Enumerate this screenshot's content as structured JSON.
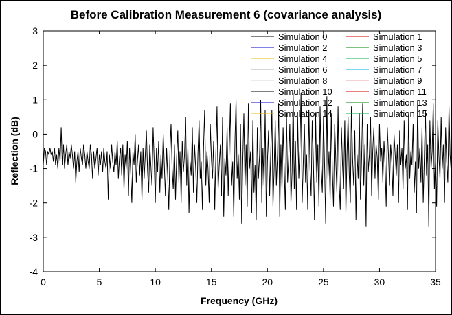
{
  "chart_data": {
    "type": "line",
    "title": "Before Calibration Measurement 6 (covariance analysis)",
    "xlabel": "Frequency (GHz)",
    "ylabel": "Reflection (dB)",
    "xlim": [
      0,
      35
    ],
    "ylim": [
      -4,
      3
    ],
    "xticks": [
      "0",
      "5",
      "10",
      "15",
      "20",
      "25",
      "30",
      "35"
    ],
    "yticks": [
      "3",
      "2",
      "1",
      "0",
      "-1",
      "-2",
      "-3",
      "-4"
    ],
    "grid": false,
    "legend_placement": "top-right",
    "x_start": 0,
    "x_step": 0.1,
    "series": [
      {
        "name": "Simulation 0",
        "color": "#000000",
        "values": [
          -0.9,
          -0.4,
          -0.5,
          -0.9,
          -0.5,
          -0.6,
          -0.4,
          -0.6,
          -0.5,
          -0.8,
          -0.4,
          -0.9,
          -0.6,
          -1.0,
          -0.4,
          -0.8,
          0.2,
          -0.9,
          -0.3,
          -1.0,
          -0.6,
          -0.3,
          -0.9,
          -0.5,
          -0.7,
          -0.3,
          -0.6,
          -1.0,
          -0.5,
          -1.4,
          -0.8,
          -0.5,
          -1.1,
          -0.4,
          -0.7,
          -0.9,
          -0.3,
          -0.6,
          -1.0,
          -0.5,
          -0.8,
          -1.0,
          -0.3,
          -0.6,
          -1.3,
          -0.5,
          -1.0,
          -0.7,
          -0.4,
          -1.2,
          -0.6,
          -0.9,
          -0.5,
          -1.1,
          -0.4,
          -0.8,
          -1.0,
          -0.5,
          -1.9,
          -0.6,
          -1.0,
          -0.3,
          -0.8,
          -1.1,
          -0.5,
          -0.9,
          -0.2,
          -1.3,
          -0.7,
          -0.4,
          -1.2,
          -0.3,
          -1.6,
          -0.6,
          -1.0,
          -0.2,
          -1.8,
          -0.4,
          -1.1,
          -2.0,
          -0.5,
          -0.9,
          0.0,
          -1.4,
          -0.8,
          -0.3,
          -1.2,
          -0.5,
          -1.9,
          -0.4,
          -1.3,
          -0.6,
          0.1,
          -1.0,
          -1.7,
          -0.3,
          -0.9,
          -1.5,
          0.2,
          -0.8,
          -2.0,
          -0.4,
          -1.1,
          -0.2,
          -1.7,
          -0.6,
          -1.3,
          0.0,
          -0.9,
          -1.8,
          -0.4,
          -1.2,
          -2.2,
          -0.5,
          0.3,
          -1.0,
          -1.6,
          -0.3,
          -1.9,
          -0.7,
          0.1,
          -1.4,
          -0.5,
          -2.0,
          -0.2,
          -1.1,
          -0.6,
          0.5,
          -1.5,
          -0.4,
          -2.3,
          -0.8,
          -1.2,
          0.2,
          -1.7,
          -0.3,
          -1.0,
          -2.0,
          -0.6,
          0.4,
          -1.3,
          -0.8,
          -2.2,
          -0.4,
          0.7,
          -1.5,
          -0.5,
          -1.0,
          -2.0,
          0.3,
          -0.7,
          -1.3,
          -0.2,
          -2.2,
          -0.6,
          0.8,
          -1.6,
          -0.9,
          -0.3,
          -1.8,
          0.5,
          -2.4,
          -0.7,
          -1.2,
          0.2,
          -1.8,
          -0.4,
          0.9,
          -1.5,
          -0.8,
          -2.4,
          -0.2,
          1.0,
          -1.3,
          -0.6,
          -1.9,
          0.3,
          -2.6,
          -0.8,
          0.6,
          -1.5,
          -0.3,
          -2.1,
          0.9,
          -1.0,
          -0.5,
          -2.3,
          0.4,
          -1.7,
          -0.9,
          -2.5,
          0.2,
          -1.3,
          -0.6,
          1.0,
          -2.0,
          -0.4,
          -1.5,
          0.7,
          -2.4,
          -0.8,
          0.1,
          -1.8,
          -0.5,
          0.7,
          -2.1,
          -1.0,
          0.4,
          -1.5,
          -0.6,
          0.9,
          -2.4,
          -0.3,
          -1.6,
          0.2,
          -1.0,
          -2.2,
          0.6,
          -1.4,
          -0.7,
          0.3,
          -2.0,
          -1.1,
          1.2,
          -1.6,
          -0.2,
          -2.2,
          0.5,
          -1.3,
          -0.4,
          1.2,
          -2.0,
          -0.8,
          0.3,
          -1.4,
          -0.6,
          -2.2,
          0.7,
          -1.0,
          -1.8,
          0.4,
          -0.8,
          -2.5,
          0.6,
          -1.4,
          -0.3,
          -2.1,
          0.8,
          -1.0,
          -1.7,
          0.5,
          -0.9,
          -2.6,
          1.1,
          -1.3,
          -0.5,
          -1.9,
          0.6,
          -1.1,
          -2.1,
          0.3,
          -0.7,
          -1.7,
          0.8,
          -1.4,
          -2.2,
          0.2,
          -0.9,
          -1.6,
          0.4,
          -2.3,
          -0.6,
          0.5,
          -1.2,
          -2.0,
          0.8,
          -0.7,
          -1.5,
          0.1,
          -2.5,
          -0.6,
          -1.3,
          0.6,
          -1.9,
          -0.8,
          0.9,
          -1.5,
          -0.3,
          -2.7,
          0.3,
          -1.1,
          -0.6,
          0.5,
          -1.8,
          -0.5,
          0.2,
          -1.3,
          -0.3,
          -0.7,
          -1.9,
          0.3,
          -0.8,
          -0.4,
          -1.4,
          -0.2,
          -0.9,
          -2.1,
          0.2,
          -0.6,
          -1.5,
          -0.3,
          -0.8,
          -1.8,
          0.0,
          -0.6,
          -1.2,
          -0.3,
          -2.0,
          0.1,
          -0.9,
          -0.4,
          -1.6,
          0.4,
          -1.0,
          -0.6,
          -2.2,
          0.6,
          -1.3,
          -0.5,
          -0.9,
          0.3,
          -1.7,
          -0.8,
          -2.3,
          1.0,
          -1.0,
          -0.4,
          -1.4,
          0.2,
          -2.0,
          -0.7,
          0.7,
          -1.2,
          -0.3,
          -2.7,
          0.4,
          -1.0,
          -0.5,
          0.9,
          -1.6,
          -0.8,
          -2.1,
          0.4,
          -0.6,
          -1.3,
          0.5,
          -1.0,
          -0.3,
          -2.0,
          0.2,
          -0.8,
          -1.4,
          0.8,
          -0.6,
          -1.1,
          0.3,
          -0.8,
          -1.5,
          -1.2
        ]
      },
      {
        "name": "Simulation 1",
        "color": "#cc0000",
        "values": []
      },
      {
        "name": "Simulation 2",
        "color": "#0000cc",
        "values": []
      },
      {
        "name": "Simulation 3",
        "color": "#008000",
        "values": []
      },
      {
        "name": "Simulation 4",
        "color": "#e8c000",
        "values": []
      },
      {
        "name": "Simulation 5",
        "color": "#00b050",
        "values": []
      },
      {
        "name": "Simulation 6",
        "color": "#b0b0b0",
        "values": []
      },
      {
        "name": "Simulation 7",
        "color": "#00b0e0",
        "values": []
      },
      {
        "name": "Simulation 8",
        "color": "#d8d8d8",
        "values": []
      },
      {
        "name": "Simulation 9",
        "color": "#e8a0a0",
        "values": []
      },
      {
        "name": "Simulation 10",
        "color": "#000000",
        "values": []
      },
      {
        "name": "Simulation 11",
        "color": "#cc0000",
        "values": []
      },
      {
        "name": "Simulation 12",
        "color": "#0000cc",
        "values": []
      },
      {
        "name": "Simulation 13",
        "color": "#008000",
        "values": []
      },
      {
        "name": "Simulation 14",
        "color": "#e8c000",
        "values": []
      },
      {
        "name": "Simulation 15",
        "color": "#00b050",
        "values": []
      }
    ]
  }
}
